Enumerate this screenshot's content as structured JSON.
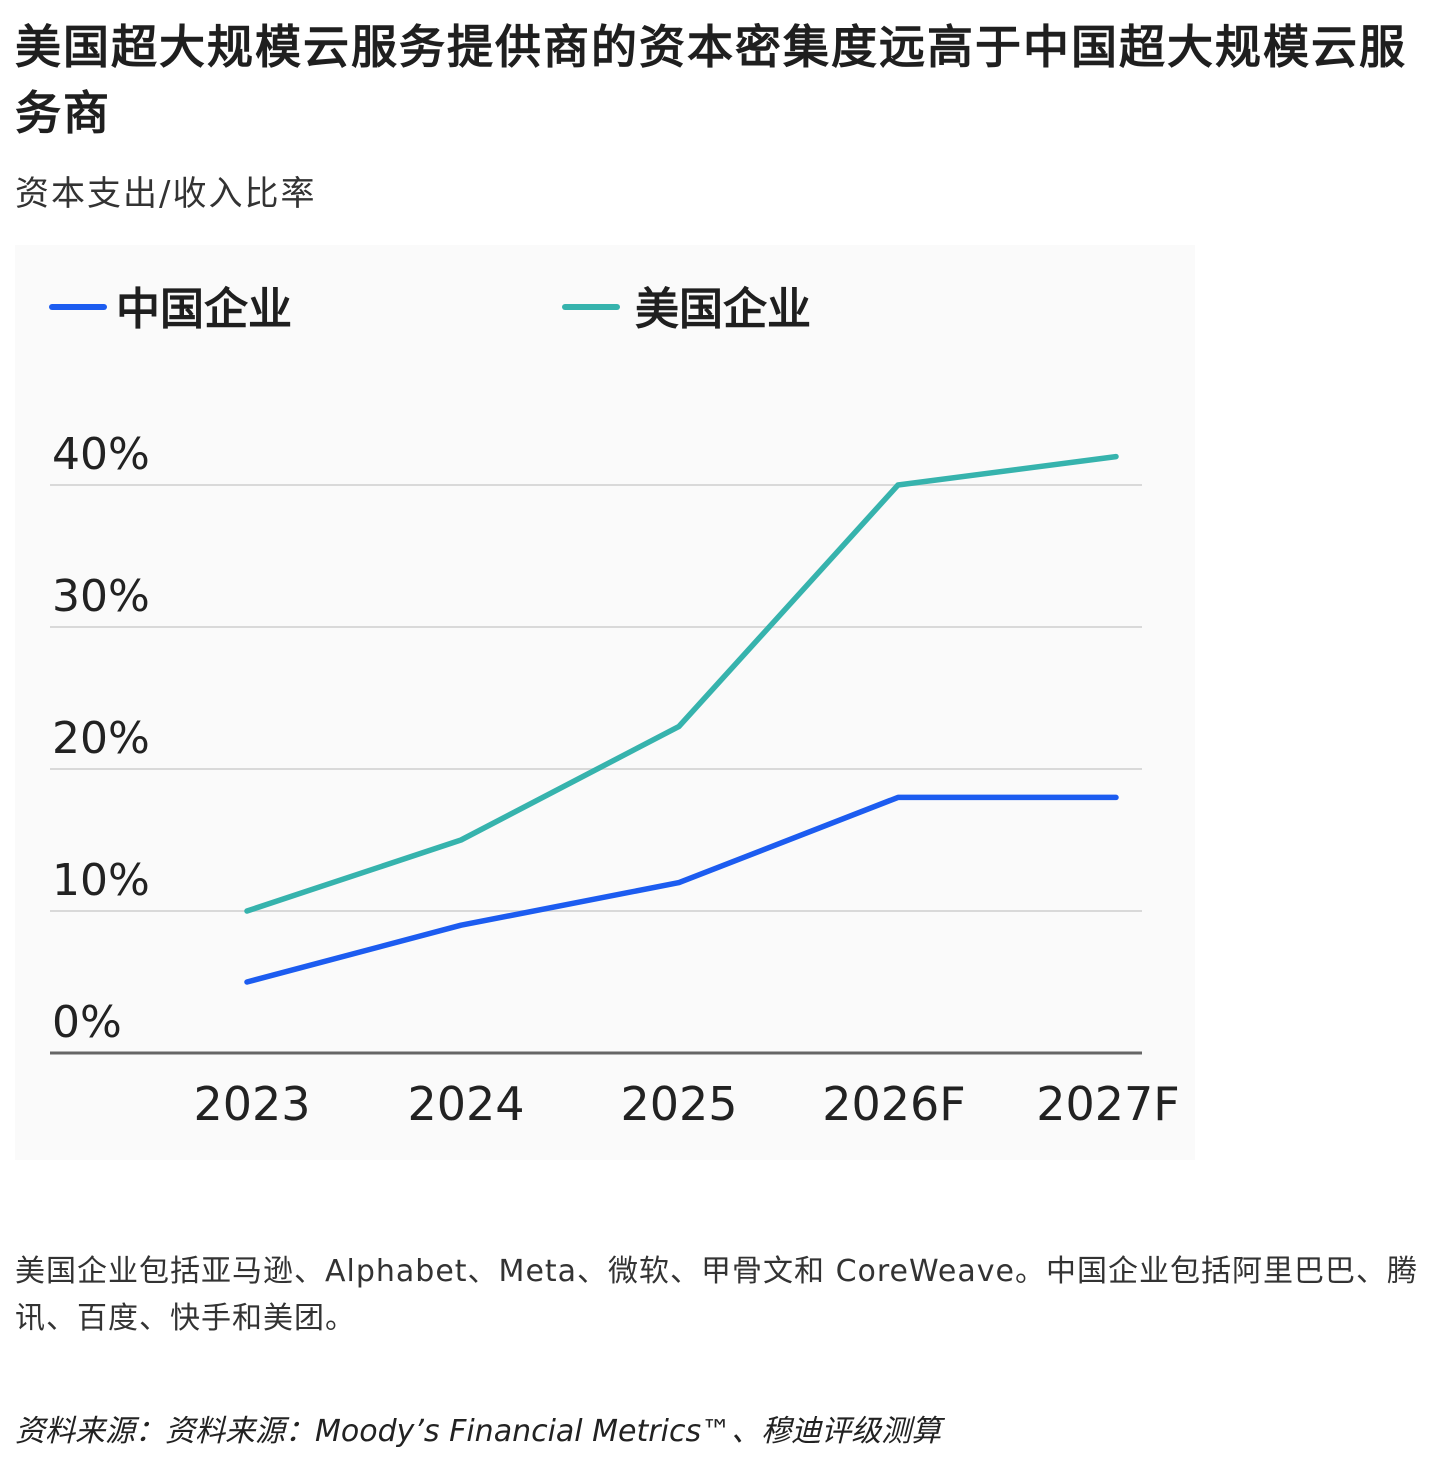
{
  "title": "美国超大规模云服务提供商的资本密集度远高于中国超大规模云服务商",
  "subtitle": "资本支出/收入比率",
  "note": "美国企业包括亚马逊、Alphabet、Meta、微软、甲骨文和 CoreWeave。中国企业包括阿里巴巴、腾讯、百度、快手和美团。",
  "source": "资料来源：资料来源：Moody’s Financial Metrics™、穆迪评级测算",
  "colors": {
    "china": "#1c5cf0",
    "us": "#36b3ad",
    "grid": "#d9d9d9",
    "axis": "#666666",
    "panel": "#fafafa"
  },
  "chart_data": {
    "type": "line",
    "categories": [
      "2023",
      "2024",
      "2025",
      "2026F",
      "2027F"
    ],
    "series": [
      {
        "name": "中国企业",
        "color": "#1c5cf0",
        "values": [
          5,
          9,
          12,
          18,
          18
        ]
      },
      {
        "name": "美国企业",
        "color": "#36b3ad",
        "values": [
          10,
          15,
          23,
          40,
          42
        ]
      }
    ],
    "yticks": [
      0,
      10,
      20,
      30,
      40
    ],
    "ytick_labels": [
      "0%",
      "10%",
      "20%",
      "30%",
      "40%"
    ],
    "ylim": [
      0,
      40
    ],
    "grid": true,
    "legend": "top-left"
  }
}
